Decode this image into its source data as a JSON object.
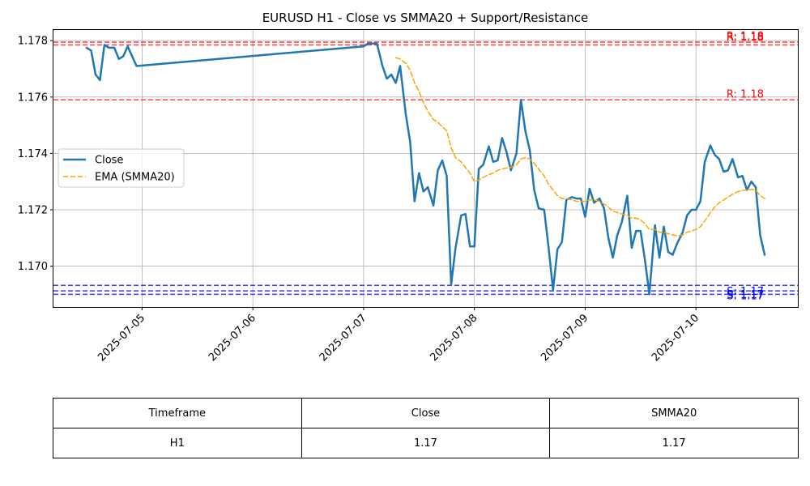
{
  "chart_data": {
    "type": "line",
    "title": "EURUSD H1 - Close vs SMMA20 + Support/Resistance",
    "xlabel": "",
    "ylabel": "",
    "x_tick_labels": [
      "2025-07-05",
      "2025-07-06",
      "2025-07-07",
      "2025-07-08",
      "2025-07-09",
      "2025-07-10"
    ],
    "x_range_days": [
      -0.8,
      5.92
    ],
    "ylim": [
      1.16855,
      1.17838
    ],
    "y_ticks": [
      1.17,
      1.172,
      1.174,
      1.176,
      1.178
    ],
    "y_tick_labels": [
      "1.170",
      "1.172",
      "1.174",
      "1.176",
      "1.178"
    ],
    "grid": true,
    "legend_position": "center-left",
    "series": [
      {
        "name": "Close",
        "color": "#1f77b4",
        "points": [
          [
            -0.5,
            1.17775
          ],
          [
            -0.46,
            1.17765
          ],
          [
            -0.42,
            1.1768
          ],
          [
            -0.38,
            1.1766
          ],
          [
            -0.34,
            1.17785
          ],
          [
            -0.3,
            1.17775
          ],
          [
            -0.25,
            1.17775
          ],
          [
            -0.21,
            1.17735
          ],
          [
            -0.17,
            1.17745
          ],
          [
            -0.13,
            1.1778
          ],
          [
            -0.05,
            1.1771
          ],
          [
            2.0,
            1.1778
          ],
          [
            2.04,
            1.1779
          ],
          [
            2.08,
            1.1779
          ],
          [
            2.12,
            1.1779
          ],
          [
            2.17,
            1.1771
          ],
          [
            2.21,
            1.17665
          ],
          [
            2.25,
            1.1768
          ],
          [
            2.29,
            1.1765
          ],
          [
            2.33,
            1.1771
          ],
          [
            2.38,
            1.1754
          ],
          [
            2.42,
            1.1744
          ],
          [
            2.46,
            1.1723
          ],
          [
            2.5,
            1.1733
          ],
          [
            2.54,
            1.17265
          ],
          [
            2.58,
            1.1728
          ],
          [
            2.63,
            1.17215
          ],
          [
            2.67,
            1.1734
          ],
          [
            2.71,
            1.17375
          ],
          [
            2.75,
            1.1732
          ],
          [
            2.79,
            1.16935
          ],
          [
            2.83,
            1.17065
          ],
          [
            2.88,
            1.1718
          ],
          [
            2.92,
            1.17185
          ],
          [
            2.96,
            1.1707
          ],
          [
            3.0,
            1.1707
          ],
          [
            3.04,
            1.17345
          ],
          [
            3.08,
            1.1736
          ],
          [
            3.13,
            1.17425
          ],
          [
            3.17,
            1.1737
          ],
          [
            3.21,
            1.17375
          ],
          [
            3.25,
            1.17455
          ],
          [
            3.29,
            1.17405
          ],
          [
            3.33,
            1.1734
          ],
          [
            3.38,
            1.174
          ],
          [
            3.42,
            1.1759
          ],
          [
            3.46,
            1.1748
          ],
          [
            3.5,
            1.1741
          ],
          [
            3.54,
            1.1727
          ],
          [
            3.58,
            1.17205
          ],
          [
            3.63,
            1.172
          ],
          [
            3.67,
            1.17065
          ],
          [
            3.71,
            1.16915
          ],
          [
            3.75,
            1.1706
          ],
          [
            3.79,
            1.17085
          ],
          [
            3.83,
            1.17235
          ],
          [
            3.88,
            1.17245
          ],
          [
            3.92,
            1.1724
          ],
          [
            3.96,
            1.1724
          ],
          [
            4.0,
            1.17175
          ],
          [
            4.04,
            1.17275
          ],
          [
            4.08,
            1.17225
          ],
          [
            4.13,
            1.1724
          ],
          [
            4.17,
            1.17205
          ],
          [
            4.21,
            1.171
          ],
          [
            4.25,
            1.1703
          ],
          [
            4.29,
            1.1711
          ],
          [
            4.33,
            1.17155
          ],
          [
            4.38,
            1.1725
          ],
          [
            4.42,
            1.17065
          ],
          [
            4.46,
            1.17125
          ],
          [
            4.5,
            1.17125
          ],
          [
            4.54,
            1.1702
          ],
          [
            4.58,
            1.169
          ],
          [
            4.63,
            1.17145
          ],
          [
            4.67,
            1.1703
          ],
          [
            4.71,
            1.1714
          ],
          [
            4.75,
            1.1705
          ],
          [
            4.79,
            1.1704
          ],
          [
            4.83,
            1.1708
          ],
          [
            4.88,
            1.1712
          ],
          [
            4.92,
            1.1718
          ],
          [
            4.96,
            1.172
          ],
          [
            5.0,
            1.172
          ],
          [
            5.04,
            1.1723
          ],
          [
            5.08,
            1.1737
          ],
          [
            5.13,
            1.17428
          ],
          [
            5.17,
            1.17395
          ],
          [
            5.21,
            1.1738
          ],
          [
            5.25,
            1.17335
          ],
          [
            5.29,
            1.1734
          ],
          [
            5.33,
            1.1738
          ],
          [
            5.38,
            1.17315
          ],
          [
            5.42,
            1.1732
          ],
          [
            5.46,
            1.1727
          ],
          [
            5.5,
            1.173
          ],
          [
            5.54,
            1.1728
          ],
          [
            5.58,
            1.1711
          ],
          [
            5.62,
            1.1704
          ]
        ]
      },
      {
        "name": "EMA (SMMA20)",
        "color": "#ffa500",
        "dashed": true,
        "points": [
          [
            2.29,
            1.1774
          ],
          [
            2.33,
            1.17735
          ],
          [
            2.38,
            1.1772
          ],
          [
            2.42,
            1.17695
          ],
          [
            2.46,
            1.1765
          ],
          [
            2.5,
            1.1762
          ],
          [
            2.54,
            1.1758
          ],
          [
            2.58,
            1.1755
          ],
          [
            2.63,
            1.1752
          ],
          [
            2.67,
            1.1751
          ],
          [
            2.71,
            1.17495
          ],
          [
            2.75,
            1.1748
          ],
          [
            2.79,
            1.1742
          ],
          [
            2.83,
            1.17385
          ],
          [
            2.88,
            1.1737
          ],
          [
            2.92,
            1.1735
          ],
          [
            2.96,
            1.1733
          ],
          [
            3.0,
            1.173
          ],
          [
            3.04,
            1.17305
          ],
          [
            3.08,
            1.17315
          ],
          [
            3.13,
            1.17325
          ],
          [
            3.17,
            1.1733
          ],
          [
            3.21,
            1.1734
          ],
          [
            3.25,
            1.17345
          ],
          [
            3.29,
            1.17348
          ],
          [
            3.33,
            1.1735
          ],
          [
            3.38,
            1.1736
          ],
          [
            3.42,
            1.1738
          ],
          [
            3.46,
            1.17385
          ],
          [
            3.5,
            1.1738
          ],
          [
            3.54,
            1.17365
          ],
          [
            3.58,
            1.17345
          ],
          [
            3.63,
            1.1732
          ],
          [
            3.67,
            1.1729
          ],
          [
            3.71,
            1.1727
          ],
          [
            3.75,
            1.1725
          ],
          [
            3.79,
            1.1724
          ],
          [
            3.83,
            1.1724
          ],
          [
            3.88,
            1.17235
          ],
          [
            3.92,
            1.1723
          ],
          [
            3.96,
            1.1723
          ],
          [
            4.0,
            1.1723
          ],
          [
            4.04,
            1.17235
          ],
          [
            4.08,
            1.17235
          ],
          [
            4.13,
            1.1723
          ],
          [
            4.17,
            1.1722
          ],
          [
            4.21,
            1.1721
          ],
          [
            4.25,
            1.17195
          ],
          [
            4.29,
            1.1719
          ],
          [
            4.33,
            1.17185
          ],
          [
            4.38,
            1.1718
          ],
          [
            4.42,
            1.1717
          ],
          [
            4.46,
            1.1717
          ],
          [
            4.5,
            1.17165
          ],
          [
            4.54,
            1.1715
          ],
          [
            4.58,
            1.1713
          ],
          [
            4.63,
            1.1713
          ],
          [
            4.67,
            1.1712
          ],
          [
            4.71,
            1.1712
          ],
          [
            4.75,
            1.17115
          ],
          [
            4.79,
            1.1711
          ],
          [
            4.83,
            1.17108
          ],
          [
            4.88,
            1.1711
          ],
          [
            4.92,
            1.1712
          ],
          [
            4.96,
            1.17125
          ],
          [
            5.0,
            1.1713
          ],
          [
            5.04,
            1.1714
          ],
          [
            5.08,
            1.1716
          ],
          [
            5.13,
            1.1719
          ],
          [
            5.17,
            1.1721
          ],
          [
            5.21,
            1.17225
          ],
          [
            5.25,
            1.17235
          ],
          [
            5.29,
            1.17245
          ],
          [
            5.33,
            1.17255
          ],
          [
            5.38,
            1.17265
          ],
          [
            5.42,
            1.17268
          ],
          [
            5.46,
            1.1727
          ],
          [
            5.5,
            1.17272
          ],
          [
            5.54,
            1.1727
          ],
          [
            5.58,
            1.1725
          ],
          [
            5.62,
            1.1724
          ]
        ]
      }
    ],
    "resistance_levels": [
      {
        "value": 1.17795,
        "label": "R: 1.18"
      },
      {
        "value": 1.17785,
        "label": "R: 1.18"
      },
      {
        "value": 1.1759,
        "label": "R: 1.18"
      }
    ],
    "support_levels": [
      {
        "value": 1.16932,
        "label": "S: 1.17"
      },
      {
        "value": 1.16912,
        "label": "S: 1.17"
      },
      {
        "value": 1.169,
        "label": "S: 1.17"
      }
    ],
    "resistance_color": "#ff0000",
    "support_color": "#0000ff"
  },
  "table": {
    "headers": [
      "Timeframe",
      "Close",
      "SMMA20"
    ],
    "row": [
      "H1",
      "1.17",
      "1.17"
    ]
  }
}
